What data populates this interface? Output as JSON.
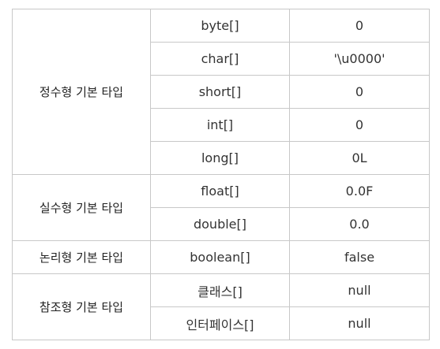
{
  "table": {
    "groups": [
      {
        "label": "정수형 기본 타입",
        "rows": [
          {
            "type": "byte[]",
            "value": "0"
          },
          {
            "type": "char[]",
            "value": "'\\u0000'"
          },
          {
            "type": "short[]",
            "value": "0"
          },
          {
            "type": "int[]",
            "value": "0"
          },
          {
            "type": "long[]",
            "value": "0L"
          }
        ]
      },
      {
        "label": "실수형 기본 타입",
        "rows": [
          {
            "type": "float[]",
            "value": "0.0F"
          },
          {
            "type": "double[]",
            "value": "0.0"
          }
        ]
      },
      {
        "label": "논리형 기본 타입",
        "rows": [
          {
            "type": "boolean[]",
            "value": "false"
          }
        ]
      },
      {
        "label": "참조형 기본 타입",
        "rows": [
          {
            "type": "클래스[]",
            "value": "null"
          },
          {
            "type": "인터페이스[]",
            "value": "null"
          }
        ]
      }
    ]
  }
}
